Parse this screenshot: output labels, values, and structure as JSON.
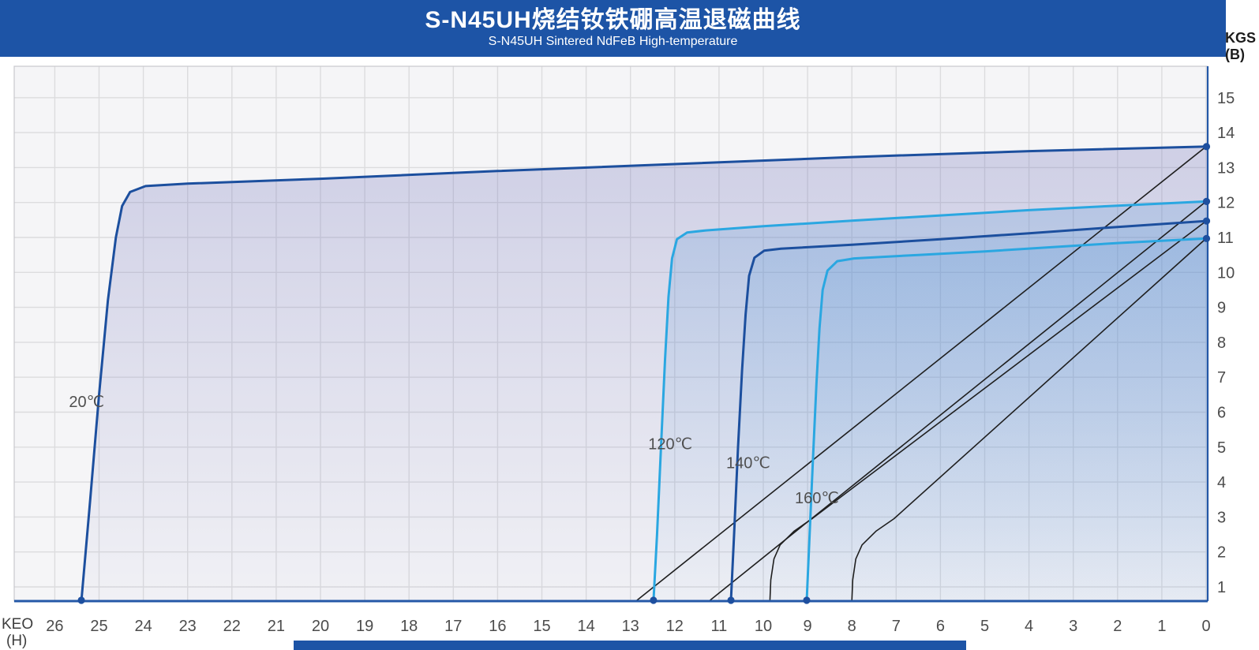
{
  "header": {
    "title": "S-N45UH烧结钕铁硼高温退磁曲线",
    "subtitle": "S-N45UH Sintered NdFeB High-temperature"
  },
  "axes": {
    "y_unit_line1": "KGS",
    "y_unit_line2": "(B)",
    "x_unit_line1": "KEO",
    "x_unit_line2": "(H)"
  },
  "colors": {
    "header_bg": "#1d54a6",
    "navy": "#1c4f9e",
    "cyan": "#2aa7e1",
    "black_line": "#1f1f1f",
    "grid": "#dcdcde",
    "plot_bg": "#f5f5f7",
    "axis_blue": "#2458a7",
    "border": "#c8c8cd",
    "tick_text": "#4c4c4c",
    "label_text": "#4f4f4f",
    "dot": "#1d4f9f"
  },
  "chart_data": {
    "type": "line",
    "title": "S-N45UH Sintered NdFeB high-temperature demagnetization curves",
    "x_axis": {
      "label": "KEO (H)",
      "reversed": true,
      "range": [
        0,
        26.9
      ],
      "ticks": [
        26,
        25,
        24,
        23,
        22,
        21,
        20,
        19,
        18,
        17,
        16,
        15,
        14,
        13,
        12,
        11,
        10,
        9,
        8,
        7,
        6,
        5,
        4,
        3,
        2,
        1,
        0
      ]
    },
    "y_axis": {
      "label": "KGS (B)",
      "range": [
        0.6,
        15.9
      ],
      "ticks": [
        15,
        14,
        13,
        12,
        11,
        10,
        9,
        8,
        7,
        6,
        5,
        4,
        3,
        2,
        1
      ]
    },
    "grid": true,
    "series": [
      {
        "name": "20C-intrinsic",
        "temperature": "20℃",
        "kind": "intrinsic",
        "color": "#1c4f9e",
        "width": 3,
        "fill_top": "rgba(116,118,188,0.30)",
        "fill_bottom": "rgba(116,118,188,0.03)",
        "remanence_kgs": 13.6,
        "coercivity_koe": 25.4,
        "points": [
          [
            25.4,
            0.6
          ],
          [
            25.2,
            3.5
          ],
          [
            25.0,
            6.5
          ],
          [
            24.8,
            9.2
          ],
          [
            24.62,
            11.0
          ],
          [
            24.48,
            11.9
          ],
          [
            24.3,
            12.3
          ],
          [
            23.95,
            12.47
          ],
          [
            23.0,
            12.54
          ],
          [
            20,
            12.68
          ],
          [
            16,
            12.9
          ],
          [
            12,
            13.1
          ],
          [
            8,
            13.3
          ],
          [
            4,
            13.47
          ],
          [
            0,
            13.6
          ]
        ]
      },
      {
        "name": "120C-intrinsic",
        "temperature": "120℃",
        "kind": "intrinsic",
        "color": "#2aa7e1",
        "width": 3,
        "fill_top": "rgba(72,142,212,0.24)",
        "fill_bottom": "rgba(72,142,212,0.02)",
        "remanence_kgs": 12.0,
        "coercivity_koe": 12.5,
        "points": [
          [
            12.48,
            0.6
          ],
          [
            12.4,
            2.5
          ],
          [
            12.31,
            5.0
          ],
          [
            12.22,
            7.5
          ],
          [
            12.14,
            9.3
          ],
          [
            12.06,
            10.4
          ],
          [
            11.95,
            10.95
          ],
          [
            11.72,
            11.14
          ],
          [
            11.3,
            11.2
          ],
          [
            10,
            11.32
          ],
          [
            8,
            11.48
          ],
          [
            6,
            11.63
          ],
          [
            4,
            11.78
          ],
          [
            2,
            11.91
          ],
          [
            0,
            12.03
          ]
        ]
      },
      {
        "name": "140C-intrinsic",
        "temperature": "140℃",
        "kind": "intrinsic",
        "color": "#1c4f9e",
        "width": 3,
        "fill_top": "rgba(72,142,212,0.17)",
        "fill_bottom": "rgba(72,142,212,0.02)",
        "remanence_kgs": 11.5,
        "coercivity_koe": 10.7,
        "points": [
          [
            10.73,
            0.6
          ],
          [
            10.66,
            2.5
          ],
          [
            10.57,
            5.0
          ],
          [
            10.48,
            7.2
          ],
          [
            10.4,
            8.8
          ],
          [
            10.32,
            9.9
          ],
          [
            10.2,
            10.42
          ],
          [
            9.98,
            10.62
          ],
          [
            9.6,
            10.68
          ],
          [
            8,
            10.79
          ],
          [
            6,
            10.95
          ],
          [
            4,
            11.12
          ],
          [
            2,
            11.3
          ],
          [
            0,
            11.47
          ]
        ]
      },
      {
        "name": "160C-intrinsic",
        "temperature": "160℃",
        "kind": "intrinsic",
        "color": "#2aa7e1",
        "width": 3,
        "fill_top": "rgba(72,142,212,0.16)",
        "fill_bottom": "rgba(72,142,212,0.02)",
        "remanence_kgs": 11.0,
        "coercivity_koe": 9.0,
        "points": [
          [
            9.02,
            0.6
          ],
          [
            8.96,
            2.3
          ],
          [
            8.88,
            4.6
          ],
          [
            8.8,
            6.8
          ],
          [
            8.73,
            8.4
          ],
          [
            8.66,
            9.5
          ],
          [
            8.55,
            10.05
          ],
          [
            8.33,
            10.32
          ],
          [
            7.95,
            10.4
          ],
          [
            6.5,
            10.5
          ],
          [
            5,
            10.6
          ],
          [
            3.5,
            10.72
          ],
          [
            2,
            10.84
          ],
          [
            0,
            10.97
          ]
        ]
      },
      {
        "name": "20C-normal",
        "temperature": "20℃",
        "kind": "normal",
        "color": "#1f1f1f",
        "width": 1.6,
        "points": [
          [
            12.87,
            0.6
          ],
          [
            0,
            13.6
          ]
        ]
      },
      {
        "name": "120C-normal",
        "temperature": "120℃",
        "kind": "normal",
        "color": "#1f1f1f",
        "width": 1.6,
        "points": [
          [
            11.22,
            0.6
          ],
          [
            0,
            12.03
          ]
        ]
      },
      {
        "name": "140C-normal",
        "temperature": "140℃",
        "kind": "normal",
        "color": "#1f1f1f",
        "width": 1.6,
        "points": [
          [
            9.85,
            0.6
          ],
          [
            9.83,
            1.2
          ],
          [
            9.76,
            1.8
          ],
          [
            9.62,
            2.2
          ],
          [
            9.3,
            2.6
          ],
          [
            8.9,
            2.95
          ],
          [
            0,
            11.47
          ]
        ]
      },
      {
        "name": "160C-normal",
        "temperature": "160℃",
        "kind": "normal",
        "color": "#1f1f1f",
        "width": 1.6,
        "points": [
          [
            8.0,
            0.6
          ],
          [
            7.98,
            1.2
          ],
          [
            7.91,
            1.8
          ],
          [
            7.77,
            2.2
          ],
          [
            7.45,
            2.6
          ],
          [
            7.05,
            2.95
          ],
          [
            0,
            10.97
          ]
        ]
      }
    ],
    "curve_labels": [
      {
        "text": "20℃",
        "h": 25.28,
        "b": 6.3
      },
      {
        "text": "120℃",
        "h": 12.1,
        "b": 5.1
      },
      {
        "text": "140℃",
        "h": 10.34,
        "b": 4.55
      },
      {
        "text": "160℃",
        "h": 8.79,
        "b": 3.55
      }
    ]
  }
}
